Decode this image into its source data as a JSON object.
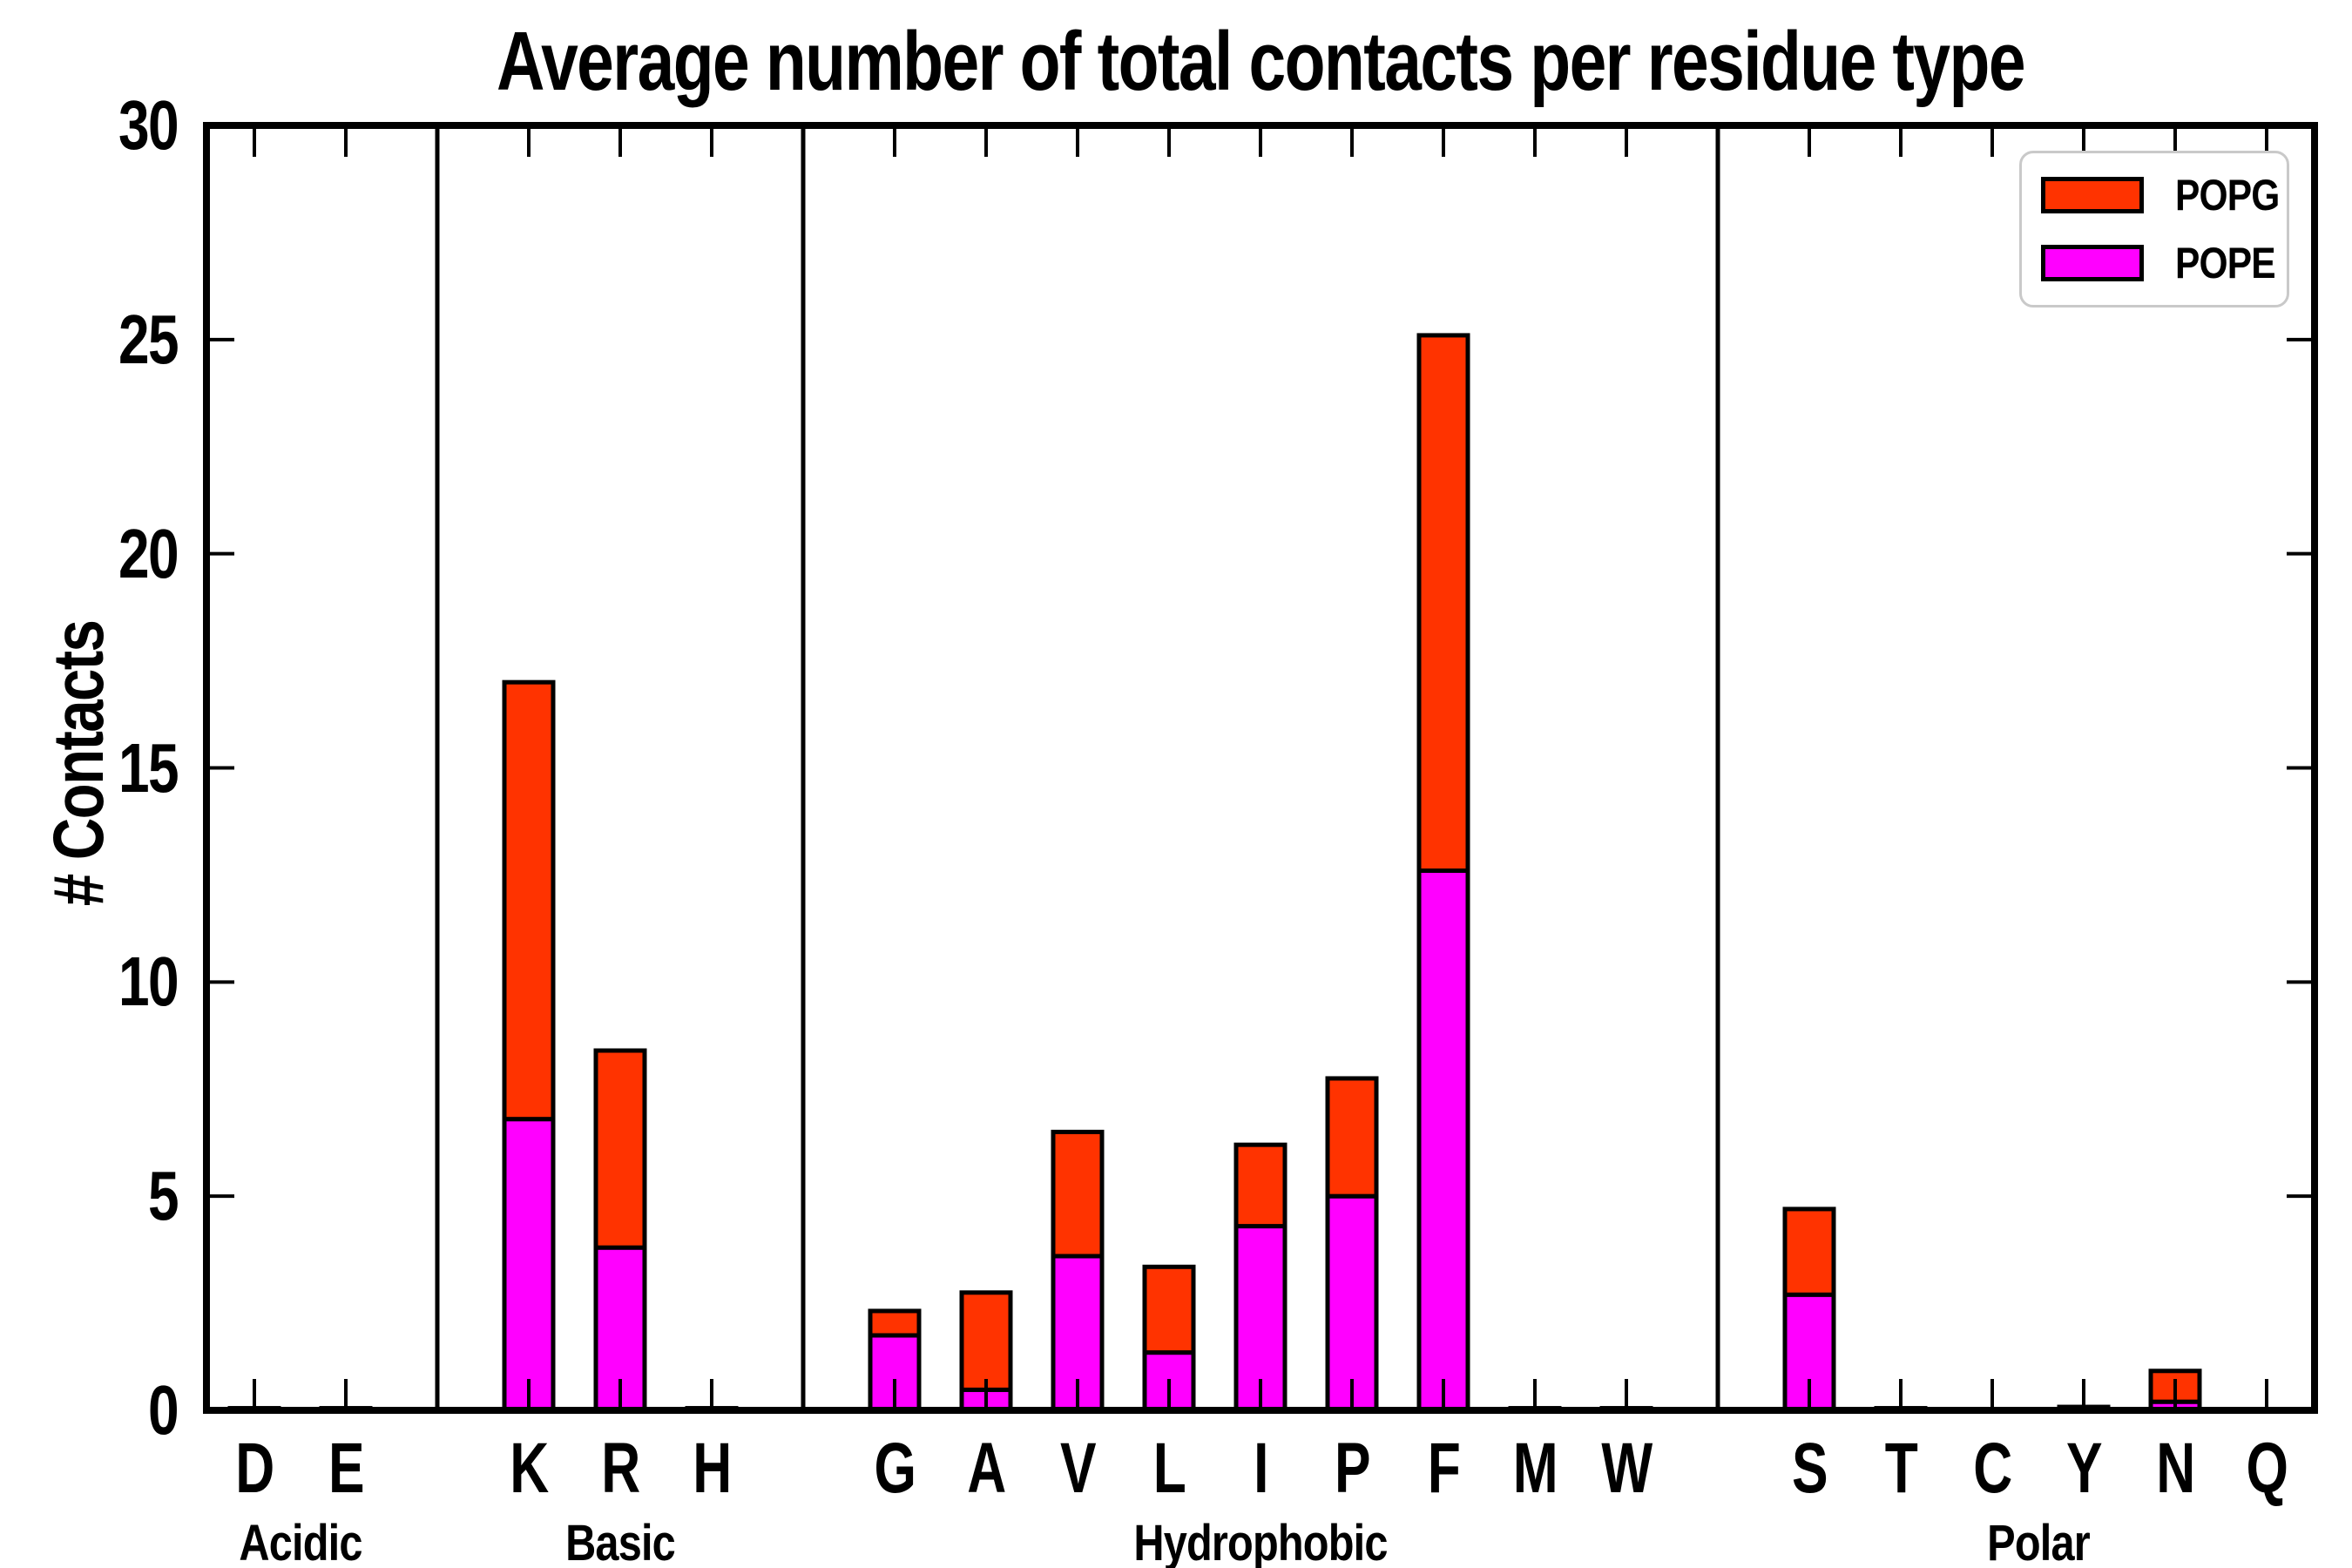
{
  "title": "Average number of total contacts per residue type",
  "axes": {
    "ylabel": "# Contacts",
    "ytick_labels": [
      "0",
      "5",
      "10",
      "15",
      "20",
      "25",
      "30"
    ]
  },
  "legend": {
    "items": [
      {
        "label": "POPG",
        "color": "#FF3300"
      },
      {
        "label": "POPE",
        "color": "#FF00FF"
      }
    ]
  },
  "chart_data": {
    "type": "bar",
    "stacked": true,
    "title": "Average number of total contacts per residue type",
    "xlabel": "",
    "ylabel": "# Contacts",
    "ylim": [
      0,
      30
    ],
    "yticks": [
      0,
      5,
      10,
      15,
      20,
      25,
      30
    ],
    "grid": false,
    "legend_position": "upper right",
    "categories": [
      "D",
      "E",
      "K",
      "R",
      "H",
      "G",
      "A",
      "V",
      "L",
      "I",
      "P",
      "F",
      "M",
      "W",
      "S",
      "T",
      "C",
      "Y",
      "N",
      "Q"
    ],
    "groups": [
      {
        "label": "Acidic",
        "categories": [
          "D",
          "E"
        ]
      },
      {
        "label": "Basic",
        "categories": [
          "K",
          "R",
          "H"
        ]
      },
      {
        "label": "Hydrophobic",
        "categories": [
          "G",
          "A",
          "V",
          "L",
          "I",
          "P",
          "F",
          "M",
          "W"
        ]
      },
      {
        "label": "Polar",
        "categories": [
          "S",
          "T",
          "C",
          "Y",
          "N",
          "Q"
        ]
      }
    ],
    "series": [
      {
        "name": "POPE",
        "color": "#FF00FF",
        "values": [
          0.02,
          0.02,
          6.8,
          3.8,
          0.02,
          1.75,
          0.48,
          3.6,
          1.35,
          4.3,
          5.0,
          12.6,
          0.02,
          0.02,
          2.7,
          0.02,
          0.01,
          0.03,
          0.2,
          0.01
        ]
      },
      {
        "name": "POPG",
        "color": "#FF3300",
        "values": [
          0.03,
          0.03,
          10.2,
          4.6,
          0.03,
          0.57,
          2.27,
          2.9,
          2.0,
          1.9,
          2.75,
          12.5,
          0.03,
          0.03,
          2.0,
          0.03,
          0.02,
          0.05,
          0.72,
          0.02
        ]
      }
    ],
    "totals": [
      0.05,
      0.05,
      17.0,
      8.4,
      0.05,
      2.32,
      2.75,
      6.5,
      3.35,
      6.2,
      7.75,
      25.1,
      0.05,
      0.05,
      4.7,
      0.05,
      0.03,
      0.08,
      0.92,
      0.03
    ]
  }
}
